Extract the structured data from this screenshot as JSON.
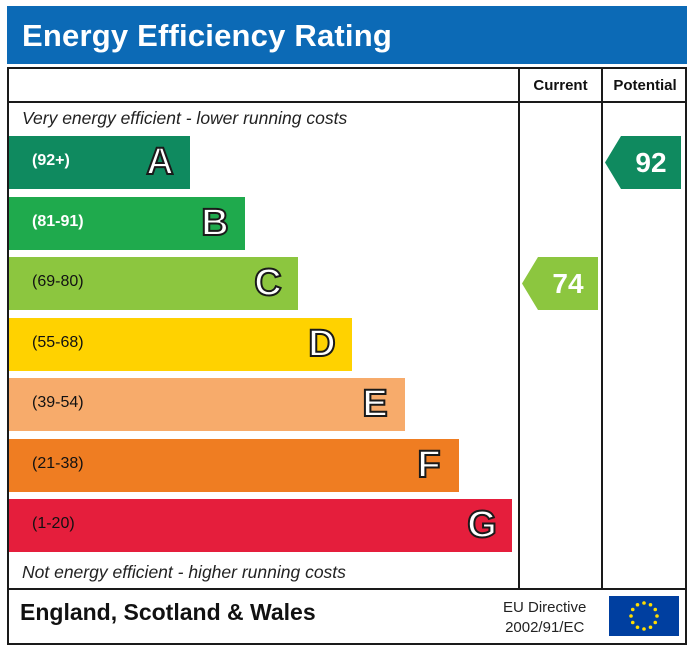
{
  "title": "Energy Efficiency Rating",
  "columns": {
    "current": "Current",
    "potential": "Potential"
  },
  "top_note": "Very energy efficient - lower running costs",
  "bottom_note": "Not energy efficient - higher running costs",
  "footer": {
    "region": "England, Scotland & Wales",
    "directive_line1": "EU Directive",
    "directive_line2": "2002/91/EC"
  },
  "icons": {
    "eu_flag": "eu-flag-icon"
  },
  "chart_data": {
    "type": "bar",
    "categories": [
      "A",
      "B",
      "C",
      "D",
      "E",
      "F",
      "G"
    ],
    "ranges": [
      "(92+)",
      "(81-91)",
      "(69-80)",
      "(55-68)",
      "(39-54)",
      "(21-38)",
      "(1-20)"
    ],
    "colors": [
      "#0f8a5f",
      "#1faa4d",
      "#8cc63f",
      "#ffd200",
      "#f7ab6b",
      "#ef7d22",
      "#e51e3c"
    ],
    "current": {
      "value": 74,
      "band": "C",
      "color": "#8cc63f"
    },
    "potential": {
      "value": 92,
      "band": "A",
      "color": "#0f8a5f"
    }
  }
}
